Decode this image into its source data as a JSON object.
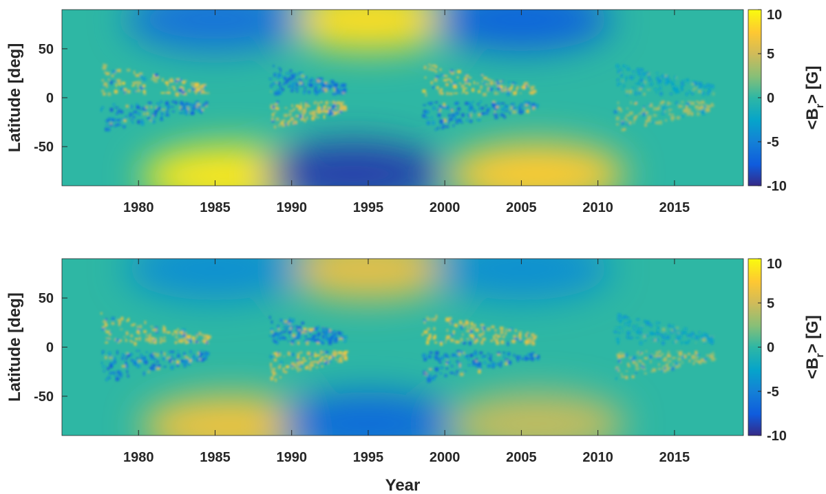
{
  "chart_data": [
    {
      "type": "heatmap",
      "xlabel": "",
      "ylabel": "Latitude [deg]",
      "xlim": [
        1975,
        2019.5
      ],
      "ylim": [
        -90,
        90
      ],
      "xticks": [
        1980,
        1985,
        1990,
        1995,
        2000,
        2005,
        2010,
        2015
      ],
      "xtick_labels": [
        "1980",
        "1985",
        "1990",
        "1995",
        "2000",
        "2005",
        "2010",
        "2015"
      ],
      "yticks": [
        50,
        0,
        -50
      ],
      "ytick_labels": [
        "50",
        "0",
        "-50"
      ],
      "colorbar": {
        "label_prefix": "<B",
        "label_sub": "r",
        "label_suffix": "> [G]",
        "range": [
          -10,
          10
        ],
        "ticks": [
          10,
          5,
          0,
          -5,
          -10
        ],
        "tick_labels": [
          "10",
          "5",
          "0",
          "-5",
          "-10"
        ],
        "colormap": "parula"
      },
      "polar_fields": [
        {
          "x": 1986,
          "y": -80,
          "value": 9
        },
        {
          "x": 1995,
          "y": 80,
          "value": 8.5
        },
        {
          "x": 1994,
          "y": -78,
          "value": -9
        },
        {
          "x": 1985,
          "y": 80,
          "value": -6
        },
        {
          "x": 2006,
          "y": -78,
          "value": 7.5
        },
        {
          "x": 2005,
          "y": 80,
          "value": -7
        }
      ],
      "butterfly_wings": [
        {
          "x_start": 1977.5,
          "x_end": 1984.5,
          "north_value": 6,
          "south_value": -6
        },
        {
          "x_start": 1988.5,
          "x_end": 1993.5,
          "north_value": -6,
          "south_value": 6
        },
        {
          "x_start": 1998.5,
          "x_end": 2006,
          "north_value": 6,
          "south_value": -6
        },
        {
          "x_start": 2011,
          "x_end": 2017.5,
          "north_value": -3,
          "south_value": 4
        }
      ]
    },
    {
      "type": "heatmap",
      "xlabel": "Year",
      "ylabel": "Latitude [deg]",
      "xlim": [
        1975,
        2019.5
      ],
      "ylim": [
        -90,
        90
      ],
      "xticks": [
        1980,
        1985,
        1990,
        1995,
        2000,
        2005,
        2010,
        2015
      ],
      "xtick_labels": [
        "1980",
        "1985",
        "1990",
        "1995",
        "2000",
        "2005",
        "2010",
        "2015"
      ],
      "yticks": [
        50,
        0,
        -50
      ],
      "ytick_labels": [
        "50",
        "0",
        "-50"
      ],
      "colorbar": {
        "label_prefix": "<B",
        "label_sub": "r",
        "label_suffix": "> [G]",
        "range": [
          -10,
          10
        ],
        "ticks": [
          10,
          5,
          0,
          -5,
          -10
        ],
        "tick_labels": [
          "10",
          "5",
          "0",
          "-5",
          "-10"
        ],
        "colormap": "parula"
      },
      "polar_fields": [
        {
          "x": 1986,
          "y": -80,
          "value": 6.5
        },
        {
          "x": 1995,
          "y": 80,
          "value": 6
        },
        {
          "x": 1995,
          "y": -78,
          "value": -6.5
        },
        {
          "x": 1985,
          "y": 80,
          "value": -4
        },
        {
          "x": 2006,
          "y": -78,
          "value": 4.5
        },
        {
          "x": 2005,
          "y": 80,
          "value": -4
        }
      ],
      "butterfly_wings": [
        {
          "x_start": 1977.5,
          "x_end": 1984.5,
          "north_value": 6,
          "south_value": -6
        },
        {
          "x_start": 1988.5,
          "x_end": 1993.5,
          "north_value": -6,
          "south_value": 6
        },
        {
          "x_start": 1998.5,
          "x_end": 2006,
          "north_value": 6,
          "south_value": -6
        },
        {
          "x_start": 2011,
          "x_end": 2017.5,
          "north_value": -3,
          "south_value": 4
        }
      ]
    }
  ]
}
